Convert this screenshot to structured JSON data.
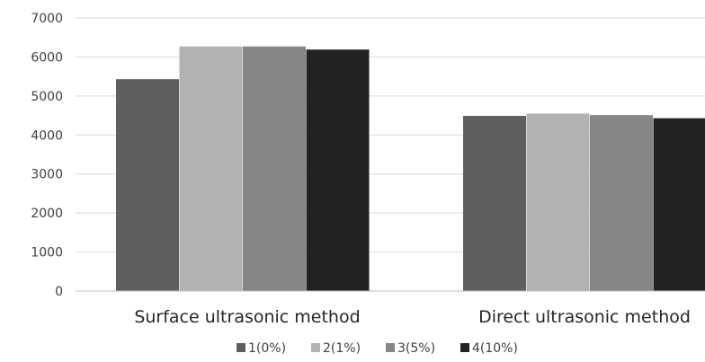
{
  "chart_data": {
    "type": "bar",
    "categories": [
      "Surface ultrasonic method",
      "Direct ultrasonic method"
    ],
    "series": [
      {
        "name": "1(0%)",
        "values": [
          5430,
          4490
        ],
        "color": "#5f5f5f"
      },
      {
        "name": "2(1%)",
        "values": [
          6270,
          4550
        ],
        "color": "#b2b2b2"
      },
      {
        "name": "3(5%)",
        "values": [
          6270,
          4510
        ],
        "color": "#868686"
      },
      {
        "name": "4(10%)",
        "values": [
          6190,
          4430
        ],
        "color": "#222222"
      }
    ],
    "yticks": [
      "0",
      "1000",
      "2000",
      "3000",
      "4000",
      "5000",
      "6000",
      "7000"
    ],
    "ylim": [
      0,
      7000
    ],
    "grid": true,
    "legend_position": "bottom"
  }
}
